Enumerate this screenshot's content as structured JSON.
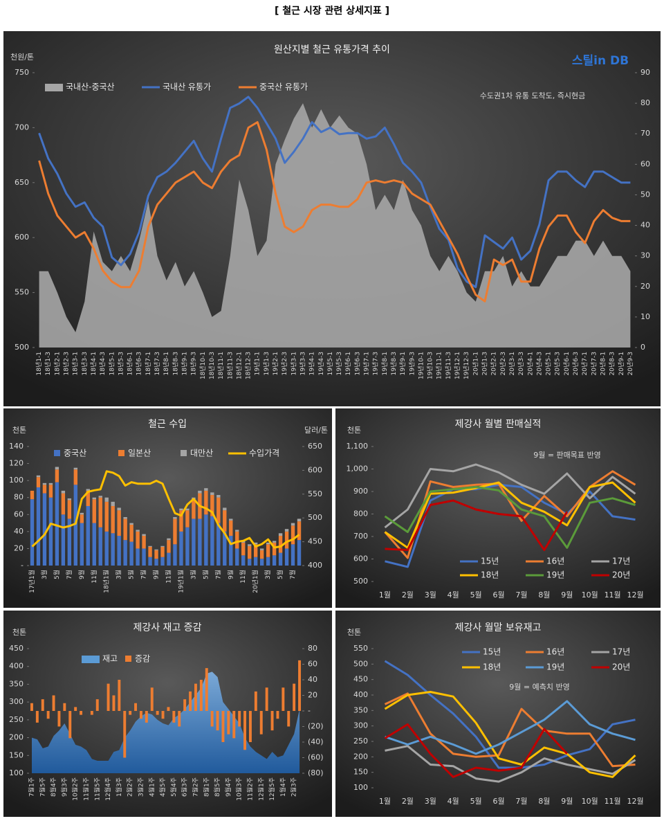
{
  "title": "[ 철근 시장 관련 상세지표 ]",
  "chart_data": [
    {
      "type": "line",
      "title": "원산지별 철근 유통가격 추이",
      "y_label": "천원/톤",
      "annotation": "수도권1차 유통 도착도, 즉시현금",
      "logo": "스틸in DB",
      "categories": [
        "18년1-1",
        "18년1-3",
        "18년2-1",
        "18년2-3",
        "18년3-1",
        "18년3-3",
        "18년4-1",
        "18년4-3",
        "18년5-1",
        "18년5-3",
        "18년6-1",
        "18년6-3",
        "18년7-1",
        "18년7-3",
        "18년8-1",
        "18년8-3",
        "18년9-1",
        "18년9-3",
        "18년10-1",
        "18년10-3",
        "18년11-1",
        "18년11-3",
        "18년12-1",
        "18년12-3",
        "19년1-1",
        "19년1-3",
        "19년2-1",
        "19년2-3",
        "19년3-1",
        "19년3-3",
        "19년4-1",
        "19년4-3",
        "19년5-1",
        "19년5-3",
        "19년6-1",
        "19년6-3",
        "19년7-1",
        "19년7-3",
        "19년8-1",
        "19년8-3",
        "19년9-1",
        "19년9-3",
        "19년10-1",
        "19년10-3",
        "19년11-1",
        "19년11-3",
        "19년12-1",
        "19년12-3",
        "20년1-1",
        "20년1-3",
        "20년2-1",
        "20년2-3",
        "20년3-1",
        "20년3-3",
        "20년4-1",
        "20년4-3",
        "20년5-1",
        "20년5-3",
        "20년6-1",
        "20년6-3",
        "20년7-1",
        "20년7-3",
        "20년8-1",
        "20년8-3",
        "20년9-1",
        "20년9-3"
      ],
      "ylim": [
        500,
        750
      ],
      "yticks": [
        500,
        550,
        600,
        650,
        700,
        750
      ],
      "y2lim": [
        0,
        90
      ],
      "y2ticks": [
        0,
        10,
        20,
        30,
        40,
        50,
        60,
        70,
        80,
        90
      ],
      "series": [
        {
          "name": "국내산-중국산",
          "kind": "area",
          "axis": "y2",
          "color": "#a6a6a6",
          "values": [
            25,
            25,
            18,
            10,
            5,
            15,
            38,
            28,
            25,
            30,
            25,
            35,
            48,
            30,
            22,
            28,
            20,
            25,
            18,
            10,
            12,
            30,
            55,
            45,
            30,
            35,
            60,
            68,
            75,
            80,
            72,
            78,
            72,
            76,
            72,
            70,
            60,
            45,
            50,
            45,
            55,
            45,
            40,
            30,
            25,
            30,
            25,
            18,
            15,
            25,
            25,
            30,
            20,
            25,
            20,
            20,
            25,
            30,
            30,
            35,
            35,
            30,
            35,
            30,
            30,
            25
          ]
        },
        {
          "name": "국내산 유통가",
          "kind": "line",
          "color": "#4472c4",
          "values": [
            695,
            672,
            658,
            640,
            628,
            632,
            618,
            610,
            582,
            575,
            585,
            605,
            638,
            655,
            660,
            668,
            678,
            688,
            672,
            660,
            690,
            718,
            722,
            728,
            718,
            704,
            690,
            668,
            678,
            690,
            705,
            696,
            700,
            694,
            695,
            695,
            690,
            692,
            700,
            685,
            668,
            660,
            650,
            628,
            608,
            598,
            572,
            560,
            555,
            602,
            596,
            590,
            600,
            580,
            588,
            612,
            652,
            660,
            660,
            652,
            646,
            660,
            660,
            655,
            650,
            650
          ]
        },
        {
          "name": "중국산 유통가",
          "kind": "line",
          "color": "#ed7d31",
          "values": [
            670,
            640,
            620,
            610,
            600,
            605,
            590,
            570,
            560,
            555,
            555,
            570,
            610,
            630,
            640,
            650,
            655,
            660,
            650,
            645,
            660,
            670,
            675,
            700,
            705,
            680,
            640,
            610,
            605,
            610,
            625,
            630,
            630,
            628,
            628,
            635,
            650,
            652,
            650,
            652,
            650,
            640,
            635,
            630,
            615,
            600,
            585,
            565,
            548,
            542,
            580,
            575,
            580,
            560,
            560,
            590,
            610,
            620,
            620,
            605,
            595,
            615,
            625,
            618,
            615,
            615
          ]
        }
      ]
    },
    {
      "type": "bar",
      "title": "철근 수입",
      "y_label": "천톤",
      "y2_label": "달러/톤",
      "categories": [
        "17년1월",
        null,
        "3월",
        null,
        "5월",
        null,
        "7월",
        null,
        "9월",
        null,
        "11월",
        null,
        "18년1월",
        null,
        "3월",
        null,
        "5월",
        null,
        "7월",
        null,
        "9월",
        null,
        "11월",
        null,
        "19년1월",
        null,
        "3월",
        null,
        "5월",
        null,
        "7월",
        null,
        "9월",
        null,
        "11월",
        null,
        "20년1월",
        null,
        "3월",
        null,
        "5월",
        null,
        "7월",
        null
      ],
      "ylim": [
        0,
        140
      ],
      "yticks": [
        {
          "value": 0,
          "label": "-"
        },
        20,
        40,
        60,
        80,
        100,
        120,
        140
      ],
      "y2lim": [
        400,
        650
      ],
      "y2ticks": [
        400,
        450,
        500,
        550,
        600,
        650
      ],
      "series": [
        {
          "name": "중국산",
          "kind": "bar",
          "stacked": true,
          "color": "#4472c4",
          "values": [
            78,
            92,
            85,
            80,
            98,
            60,
            55,
            95,
            50,
            70,
            50,
            45,
            40,
            38,
            35,
            30,
            28,
            20,
            20,
            10,
            8,
            10,
            15,
            25,
            40,
            45,
            55,
            55,
            60,
            58,
            50,
            40,
            35,
            20,
            12,
            8,
            10,
            8,
            10,
            12,
            15,
            20,
            25,
            30
          ]
        },
        {
          "name": "일본산",
          "kind": "bar",
          "stacked": true,
          "color": "#ed7d31",
          "values": [
            10,
            12,
            10,
            15,
            15,
            25,
            22,
            18,
            10,
            18,
            28,
            35,
            35,
            32,
            30,
            25,
            20,
            20,
            15,
            12,
            10,
            12,
            15,
            30,
            25,
            20,
            22,
            30,
            28,
            25,
            30,
            25,
            18,
            20,
            15,
            15,
            15,
            10,
            15,
            15,
            20,
            20,
            22,
            22
          ]
        },
        {
          "name": "대만산",
          "kind": "bar",
          "stacked": true,
          "color": "#a5a5a5",
          "values": [
            0,
            2,
            2,
            2,
            3,
            3,
            2,
            2,
            2,
            2,
            2,
            2,
            5,
            5,
            3,
            2,
            2,
            2,
            2,
            1,
            1,
            1,
            2,
            2,
            2,
            2,
            3,
            3,
            3,
            3,
            3,
            3,
            2,
            2,
            2,
            2,
            2,
            2,
            2,
            2,
            3,
            3,
            3,
            3
          ]
        },
        {
          "name": "수입가격",
          "kind": "line",
          "axis": "y2",
          "color": "#ffc000",
          "values": [
            440,
            452,
            465,
            488,
            484,
            480,
            483,
            488,
            540,
            555,
            558,
            560,
            598,
            595,
            588,
            568,
            575,
            572,
            572,
            572,
            578,
            572,
            540,
            510,
            505,
            528,
            540,
            525,
            520,
            512,
            485,
            468,
            445,
            450,
            452,
            458,
            440,
            445,
            455,
            438,
            440,
            450,
            455,
            465
          ]
        }
      ]
    },
    {
      "type": "line",
      "title": "제강사 월별 판매실적",
      "y_label": "천톤",
      "annotation": "9월 = 판매목표 반영",
      "categories": [
        "1월",
        "2월",
        "3월",
        "4월",
        "5월",
        "6월",
        "7월",
        "8월",
        "9월",
        "10월",
        "11월",
        "12월"
      ],
      "ylim": [
        500,
        1100
      ],
      "yticks": [
        500,
        600,
        700,
        800,
        900,
        {
          "value": 1000,
          "label": "1,000"
        },
        {
          "value": 1100,
          "label": "1,100"
        }
      ],
      "series": [
        {
          "name": "15년",
          "kind": "line",
          "color": "#4472c4",
          "values": [
            590,
            565,
            860,
            910,
            910,
            930,
            920,
            850,
            800,
            900,
            790,
            775
          ]
        },
        {
          "name": "16년",
          "kind": "line",
          "color": "#ed7d31",
          "values": [
            720,
            605,
            945,
            920,
            930,
            935,
            770,
            880,
            790,
            920,
            990,
            930
          ]
        },
        {
          "name": "17년",
          "kind": "line",
          "color": "#a5a5a5",
          "values": [
            740,
            820,
            1000,
            990,
            1020,
            985,
            930,
            890,
            980,
            870,
            965,
            890
          ]
        },
        {
          "name": "18년",
          "kind": "line",
          "color": "#ffc000",
          "values": [
            720,
            650,
            890,
            895,
            915,
            940,
            850,
            810,
            750,
            920,
            940,
            850
          ]
        },
        {
          "name": "19년",
          "kind": "line",
          "color": "#5b9b3a",
          "values": [
            790,
            720,
            900,
            910,
            920,
            905,
            820,
            790,
            650,
            850,
            870,
            840
          ]
        },
        {
          "name": "20년",
          "kind": "line",
          "color": "#c00000",
          "values": [
            645,
            640,
            840,
            860,
            820,
            800,
            790,
            640,
            810,
            null,
            null,
            null
          ]
        }
      ]
    },
    {
      "type": "bar",
      "title": "제강사 재고 증감",
      "y_label": "천톤",
      "categories": [
        "7월1주",
        null,
        "7월5주",
        null,
        "8월4주",
        null,
        "9월3주",
        null,
        "10월2주",
        null,
        "11월1주",
        null,
        "11월5주",
        null,
        "12월4주",
        null,
        "1월3주",
        null,
        "2월2주",
        null,
        "3월2주",
        null,
        "4월1주",
        null,
        "4월5주",
        null,
        "5월4주",
        null,
        "6월3주",
        null,
        "7월2주",
        null,
        "8월1주",
        null,
        "8월5주",
        null,
        "9월4주",
        null,
        "10월3주",
        null,
        "11월2주",
        null,
        "12월1주",
        null,
        "12월5주",
        null,
        "1월4주",
        null,
        "2월3주",
        null
      ],
      "ylim": [
        100,
        450
      ],
      "yticks": [
        100,
        150,
        200,
        250,
        300,
        350,
        400,
        450
      ],
      "y2lim": [
        -80,
        80
      ],
      "y2ticks": [
        {
          "value": -80,
          "label": "(80)"
        },
        {
          "value": -60,
          "label": "(60)"
        },
        {
          "value": -40,
          "label": "(40)"
        },
        {
          "value": -20,
          "label": "(20)"
        },
        {
          "value": 0,
          "label": "-"
        },
        20,
        40,
        60,
        80
      ],
      "series": [
        {
          "name": "재고",
          "kind": "area",
          "color": "#5b9bd5",
          "values": [
            200,
            195,
            170,
            175,
            205,
            220,
            240,
            210,
            180,
            175,
            165,
            140,
            135,
            135,
            135,
            160,
            165,
            200,
            220,
            245,
            260,
            270,
            265,
            250,
            240,
            235,
            255,
            265,
            280,
            300,
            320,
            340,
            380,
            385,
            370,
            300,
            280,
            260,
            240,
            200,
            175,
            160,
            150,
            140,
            160,
            145,
            150,
            180,
            210,
            280
          ]
        },
        {
          "name": "증감",
          "kind": "bar",
          "axis": "y2",
          "color": "#ed7d31",
          "values": [
            10,
            -15,
            15,
            -10,
            20,
            -20,
            10,
            -35,
            5,
            -5,
            0,
            -5,
            15,
            0,
            35,
            20,
            40,
            -60,
            -5,
            10,
            -10,
            -15,
            30,
            -5,
            -10,
            5,
            -15,
            -20,
            15,
            25,
            35,
            40,
            55,
            -20,
            -25,
            -40,
            -30,
            -35,
            -20,
            -50,
            -40,
            25,
            -30,
            30,
            -25,
            -10,
            30,
            -20,
            35,
            65
          ]
        }
      ]
    },
    {
      "type": "line",
      "title": "제강사 월말 보유재고",
      "y_label": "천톤",
      "annotation": "9월 = 예측치 반영",
      "categories": [
        "1월",
        "2월",
        "3월",
        "4월",
        "5월",
        "6월",
        "7월",
        "8월",
        "9월",
        "10월",
        "11월",
        "12월"
      ],
      "ylim": [
        100,
        550
      ],
      "yticks": [
        100,
        150,
        200,
        250,
        300,
        350,
        400,
        450,
        500,
        550
      ],
      "series": [
        {
          "name": "15년",
          "kind": "line",
          "color": "#4472c4",
          "values": [
            510,
            465,
            400,
            340,
            265,
            165,
            165,
            175,
            205,
            225,
            305,
            320
          ]
        },
        {
          "name": "16년",
          "kind": "line",
          "color": "#ed7d31",
          "values": [
            370,
            405,
            275,
            210,
            200,
            205,
            355,
            285,
            275,
            275,
            170,
            175
          ]
        },
        {
          "name": "17년",
          "kind": "line",
          "color": "#a5a5a5",
          "values": [
            220,
            235,
            175,
            170,
            130,
            120,
            150,
            195,
            175,
            160,
            145,
            190
          ]
        },
        {
          "name": "18년",
          "kind": "line",
          "color": "#ffc000",
          "values": [
            355,
            400,
            410,
            395,
            310,
            195,
            175,
            230,
            210,
            150,
            135,
            205
          ]
        },
        {
          "name": "19년",
          "kind": "line",
          "color": "#5b9bd5",
          "values": [
            265,
            240,
            265,
            240,
            210,
            240,
            280,
            320,
            380,
            305,
            275,
            255
          ]
        },
        {
          "name": "20년",
          "kind": "line",
          "color": "#c00000",
          "values": [
            260,
            305,
            210,
            135,
            165,
            155,
            165,
            290,
            210,
            null,
            null,
            null
          ]
        }
      ]
    }
  ]
}
